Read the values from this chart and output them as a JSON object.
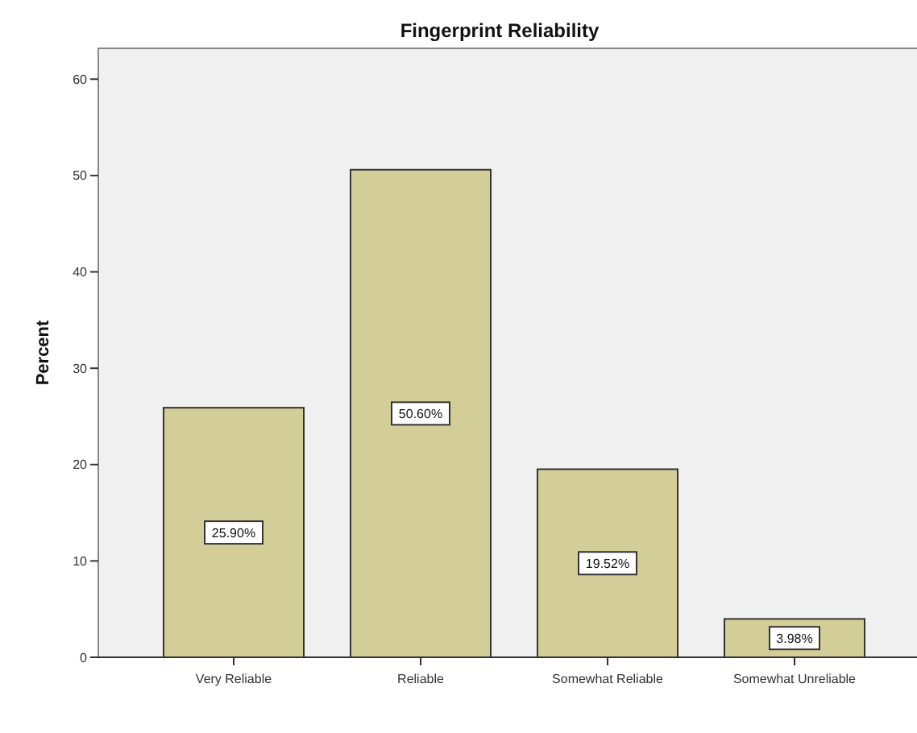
{
  "chart_data": {
    "type": "bar",
    "title": "Fingerprint Reliability",
    "ylabel": "Percent",
    "categories": [
      "Very Reliable",
      "Reliable",
      "Somewhat Reliable",
      "Somewhat Unreliable"
    ],
    "values": [
      25.9,
      50.6,
      19.52,
      3.98
    ],
    "value_labels": [
      "25.90%",
      "50.60%",
      "19.52%",
      "3.98%"
    ],
    "color": "#d3ce97",
    "ylim": [
      0,
      63.2
    ],
    "yticks": [
      0,
      10,
      20,
      30,
      40,
      50,
      60
    ],
    "grid": false
  }
}
